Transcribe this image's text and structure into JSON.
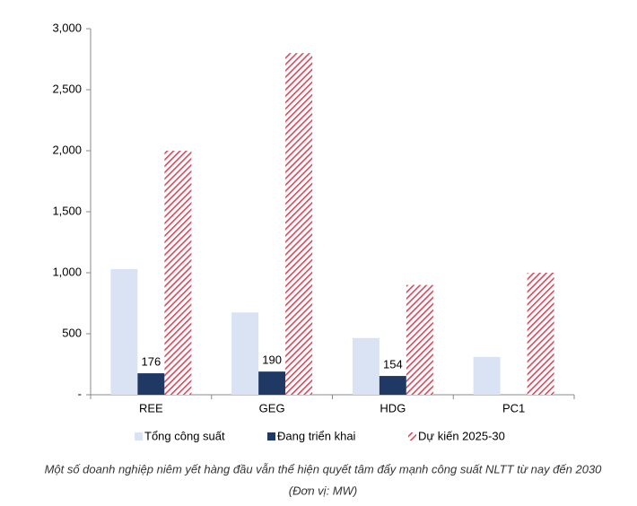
{
  "chart_data": {
    "type": "bar",
    "categories": [
      "REE",
      "GEG",
      "HDG",
      "PC1"
    ],
    "series": [
      {
        "name": "Tổng công suất",
        "color": "#dae3f3",
        "values": [
          1030,
          675,
          465,
          310
        ]
      },
      {
        "name": "Đang triển khai",
        "color": "#1f3864",
        "values": [
          176,
          190,
          154,
          null
        ],
        "show_values": true
      },
      {
        "name": "Dự kiến 2025-30",
        "color": "#d9485a",
        "hatch": true,
        "values": [
          2000,
          2800,
          900,
          1000
        ]
      }
    ],
    "ylim": [
      0,
      3000
    ],
    "yticks": [
      {
        "value": 0,
        "label": "-"
      },
      {
        "value": 500,
        "label": "500"
      },
      {
        "value": 1000,
        "label": "1,000"
      },
      {
        "value": 1500,
        "label": "1,500"
      },
      {
        "value": 2000,
        "label": "2,000"
      },
      {
        "value": 2500,
        "label": "2,500"
      },
      {
        "value": 3000,
        "label": "3,000"
      }
    ],
    "caption": "Một số doanh nghiệp niêm yết hàng đầu vẫn thể hiện quyết tâm đẩy mạnh công suất NLTT từ nay đến 2030",
    "unit_note": "(Đơn vị: MW)"
  }
}
